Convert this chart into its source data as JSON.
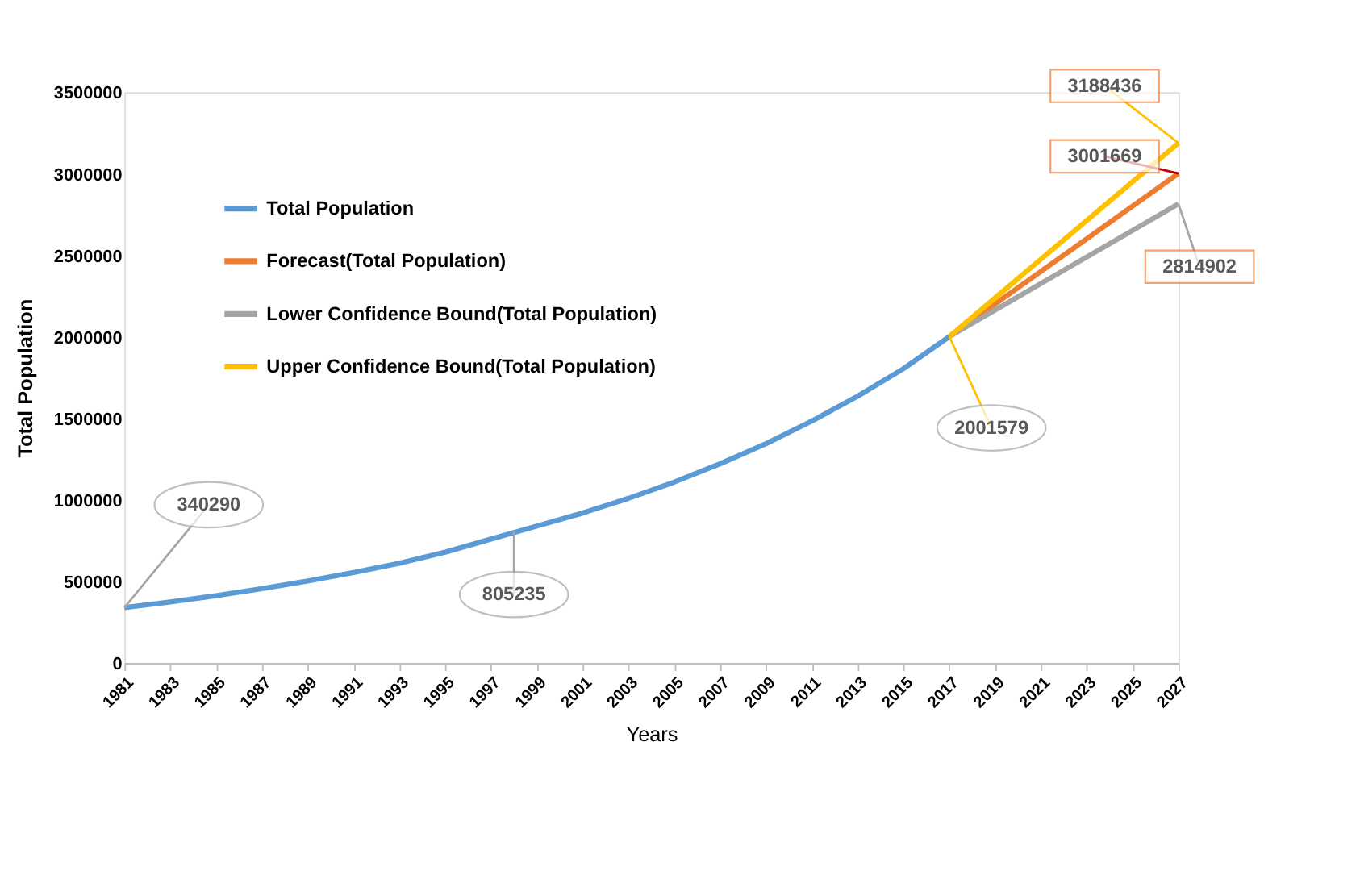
{
  "chart_data": {
    "type": "line",
    "xlabel": "Years",
    "ylabel": "Total Population",
    "xlim": [
      1981,
      2027
    ],
    "xticks": [
      1981,
      1983,
      1985,
      1987,
      1989,
      1991,
      1993,
      1995,
      1997,
      1999,
      2001,
      2003,
      2005,
      2007,
      2009,
      2011,
      2013,
      2015,
      2017,
      2019,
      2021,
      2023,
      2025,
      2027
    ],
    "ylim": [
      0,
      3500000
    ],
    "yticks": [
      0,
      500000,
      1000000,
      1500000,
      2000000,
      2500000,
      3000000,
      3500000
    ],
    "grid": false,
    "legend": "top left",
    "marker": "none",
    "line_style": "solid",
    "series": [
      {
        "name": "Total Population",
        "color": "#5b9bd5",
        "x": [
          1981,
          1983,
          1985,
          1987,
          1989,
          1991,
          1993,
          1995,
          1997,
          1999,
          2001,
          2003,
          2005,
          2007,
          2009,
          2011,
          2013,
          2015,
          2017
        ],
        "values": [
          340290,
          375000,
          413000,
          456000,
          503000,
          555000,
          612000,
          680000,
          760000,
          840000,
          920000,
          1010000,
          1110000,
          1222000,
          1345000,
          1484000,
          1636000,
          1805000,
          2001579
        ]
      },
      {
        "name": "Forecast(Total Population)",
        "color": "#ed7d31",
        "x": [
          2017,
          2027
        ],
        "values": [
          2001579,
          3001669
        ]
      },
      {
        "name": "Lower Confidence Bound(Total Population)",
        "color": "#a5a5a5",
        "x": [
          2017,
          2027
        ],
        "values": [
          2001579,
          2814902
        ]
      },
      {
        "name": "Upper Confidence Bound(Total Population)",
        "color": "#ffc000",
        "x": [
          2017,
          2027
        ],
        "values": [
          2001579,
          3188436
        ]
      }
    ],
    "annotations": [
      {
        "text": "340290",
        "x": 1981,
        "y": 340290
      },
      {
        "text": "805235",
        "x": 1998,
        "y": 805235
      },
      {
        "text": "2001579",
        "x": 2017,
        "y": 2001579
      },
      {
        "text": "3001669",
        "x": 2027,
        "y": 3001669
      },
      {
        "text": "2814902",
        "x": 2027,
        "y": 2814902
      },
      {
        "text": "3188436",
        "x": 2027,
        "y": 3188436
      }
    ]
  }
}
